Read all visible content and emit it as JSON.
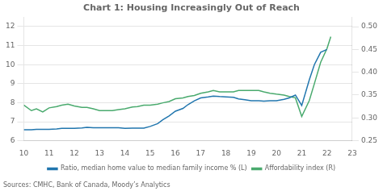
{
  "chart_data": {
    "type": "line",
    "title": "Chart 1: Housing Increasingly Out of Reach",
    "annotations": [
      "Sources: CMHC, Bank of Canada, Moody’s Analytics"
    ],
    "xlim": [
      10,
      23
    ],
    "xticks": [
      10,
      11,
      12,
      13,
      14,
      15,
      16,
      17,
      18,
      19,
      20,
      21,
      22,
      23
    ],
    "ylim": [
      6,
      12.5
    ],
    "yticks": [
      6,
      7,
      8,
      9,
      10,
      11,
      12
    ],
    "y2lim": [
      0.25,
      0.521
    ],
    "y2ticks": [
      0.25,
      {
        "value": 0.3,
        "label": "0.30"
      },
      0.35,
      {
        "value": 0.4,
        "label": "0.40"
      },
      0.45,
      {
        "value": 0.5,
        "label": "0.50"
      }
    ],
    "grid": true,
    "legend": "bottom",
    "series": [
      {
        "name": "Ratio, median home value to median family income % (L)",
        "color": "#2176ae",
        "x": [
          10.0,
          10.3,
          10.5,
          10.75,
          11.0,
          11.3,
          11.5,
          11.75,
          12.0,
          12.3,
          12.5,
          12.75,
          13.0,
          13.3,
          13.5,
          13.75,
          14.0,
          14.3,
          14.5,
          14.75,
          15.0,
          15.3,
          15.5,
          15.75,
          16.0,
          16.3,
          16.5,
          16.75,
          17.0,
          17.3,
          17.5,
          17.75,
          18.0,
          18.3,
          18.5,
          18.75,
          19.0,
          19.3,
          19.5,
          19.75,
          20.0,
          20.3,
          20.5,
          20.75,
          21.0,
          21.3,
          21.5,
          21.75,
          22.0
        ],
        "values": [
          6.58,
          6.58,
          6.6,
          6.6,
          6.6,
          6.62,
          6.65,
          6.65,
          6.65,
          6.67,
          6.7,
          6.68,
          6.68,
          6.68,
          6.68,
          6.68,
          6.65,
          6.66,
          6.66,
          6.66,
          6.75,
          6.9,
          7.1,
          7.3,
          7.55,
          7.7,
          7.9,
          8.1,
          8.25,
          8.3,
          8.35,
          8.32,
          8.3,
          8.28,
          8.2,
          8.15,
          8.1,
          8.1,
          8.08,
          8.1,
          8.1,
          8.18,
          8.25,
          8.4,
          7.85,
          9.2,
          10.0,
          10.65,
          10.8
        ]
      },
      {
        "name": "Affordability index (R)",
        "color": "#4aaa6e",
        "axis": "y2",
        "x": [
          10.0,
          10.3,
          10.5,
          10.75,
          11.0,
          11.3,
          11.5,
          11.75,
          12.0,
          12.3,
          12.5,
          12.75,
          13.0,
          13.3,
          13.5,
          13.75,
          14.0,
          14.3,
          14.5,
          14.75,
          15.0,
          15.3,
          15.5,
          15.75,
          16.0,
          16.3,
          16.5,
          16.75,
          17.0,
          17.3,
          17.5,
          17.75,
          18.0,
          18.3,
          18.5,
          18.75,
          19.0,
          19.3,
          19.5,
          19.75,
          20.0,
          20.3,
          20.5,
          20.75,
          21.0,
          21.3,
          21.5,
          21.75,
          22.0,
          22.15
        ],
        "values": [
          0.328,
          0.316,
          0.32,
          0.313,
          0.322,
          0.325,
          0.328,
          0.33,
          0.326,
          0.323,
          0.323,
          0.32,
          0.316,
          0.316,
          0.316,
          0.318,
          0.32,
          0.324,
          0.325,
          0.328,
          0.328,
          0.33,
          0.333,
          0.336,
          0.342,
          0.344,
          0.347,
          0.349,
          0.354,
          0.357,
          0.36,
          0.357,
          0.357,
          0.357,
          0.36,
          0.36,
          0.36,
          0.36,
          0.357,
          0.354,
          0.352,
          0.35,
          0.347,
          0.344,
          0.303,
          0.338,
          0.375,
          0.422,
          0.452,
          0.478
        ]
      }
    ]
  }
}
